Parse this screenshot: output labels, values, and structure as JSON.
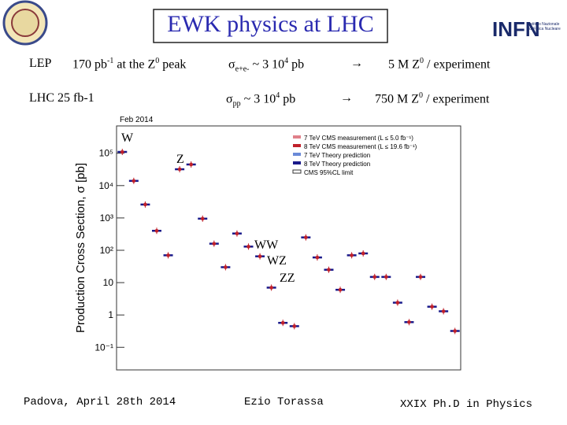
{
  "slide": {
    "title": "EWK physics at LHC",
    "logo": {
      "name": "INFN",
      "subtitle": "Istituto Nazionale di Fisica Nucleare"
    },
    "lep": {
      "label": "LEP",
      "lumi": "170 pb",
      "lumi_exp": "-1",
      "lumi_rest": " at the Z",
      "z_exp": "0",
      "lumi_end": " peak",
      "sigma": "σ",
      "sigma_sub": "e+e-",
      "sigma_val": " ~  3 10",
      "sigma_exp": "4",
      "sigma_unit": " pb",
      "arrow": "→",
      "result": "5 M Z",
      "result_exp": "0",
      "result_end": "  / experiment"
    },
    "lhc": {
      "label": "LHC   25 fb-1",
      "sigma": "σ",
      "sigma_sub": "pp",
      " sigma_val": null,
      "sigma_val": " ~  3 10",
      "sigma_exp": "4",
      "sigma_unit": " pb",
      "arrow": "→",
      "result": "750 M  Z",
      "result_exp": "0",
      "result_end": "  / experiment"
    },
    "footer": {
      "left": "Padova, April 28th 2014",
      "center": "Ezio Torassa",
      "right": "XXIX  Ph.D in Physics"
    },
    "annotations": [
      "W",
      "Z",
      "WW",
      "WZ",
      "ZZ"
    ]
  },
  "chart_data": {
    "type": "scatter",
    "title": "Feb 2014",
    "y_label": "Production Cross Section, σ [pb]",
    "log_y": true,
    "ylim": [
      0.02,
      700000
    ],
    "yticks": [
      {
        "value": 0.1,
        "label": "10⁻¹"
      },
      1,
      10,
      {
        "value": 100,
        "label": "10²"
      },
      {
        "value": 1000,
        "label": "10³"
      },
      {
        "value": 10000,
        "label": "10⁴"
      },
      {
        "value": 100000,
        "label": "10⁵"
      }
    ],
    "legend": [
      "7 TeV CMS measurement (L ≤ 5.0 fb⁻¹)",
      "8 TeV CMS measurement (L ≤ 19.6 fb⁻¹)",
      "7 TeV Theory prediction",
      "8 TeV Theory prediction",
      "CMS 95%CL limit"
    ],
    "legend_colors": [
      "#e0808a",
      "#c0202a",
      "#6a8ad8",
      "#1a1a8a",
      "#ffffff"
    ],
    "categories": [
      null,
      null,
      null,
      null,
      null,
      null,
      null,
      null,
      null,
      null,
      null,
      null,
      null,
      null,
      null,
      null,
      null,
      null,
      null,
      null,
      null,
      null,
      null,
      null,
      null,
      null,
      null,
      null,
      null,
      null
    ],
    "series": [
      {
        "name": "CMS measurement",
        "color": "#c0202a",
        "values": [
          110000,
          14000,
          2600,
          400,
          70,
          32000,
          45000,
          950,
          160,
          30,
          330,
          130,
          65,
          7,
          0.57,
          0.45,
          250,
          60,
          25,
          6,
          70,
          80,
          15,
          15,
          2.4,
          0.6,
          15,
          1.8,
          1.3,
          0.32
        ]
      }
    ]
  }
}
